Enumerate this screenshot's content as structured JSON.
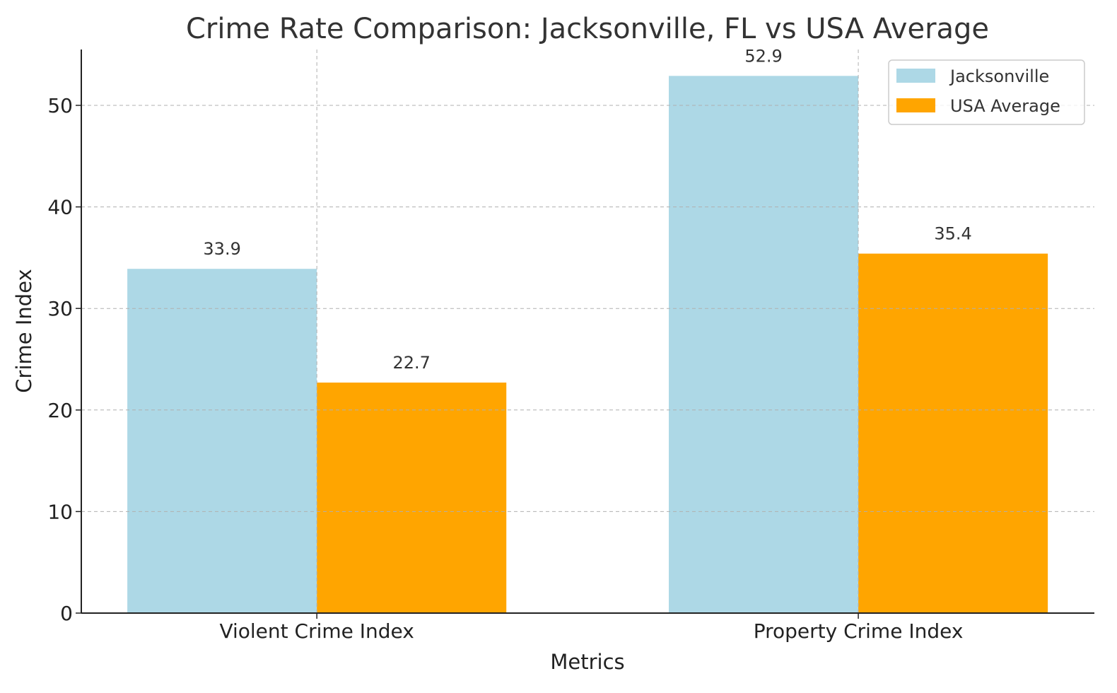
{
  "chart_data": {
    "type": "bar",
    "title": "Crime Rate Comparison: Jacksonville, FL vs USA Average",
    "xlabel": "Metrics",
    "ylabel": "Crime Index",
    "categories": [
      "Violent Crime Index",
      "Property Crime Index"
    ],
    "series": [
      {
        "name": "Jacksonville",
        "values": [
          33.9,
          52.9
        ],
        "color": "#ADD8E6"
      },
      {
        "name": "USA Average",
        "values": [
          22.7,
          35.4
        ],
        "color": "#FFA500"
      }
    ],
    "data_labels": [
      [
        "33.9",
        "52.9"
      ],
      [
        "22.7",
        "35.4"
      ]
    ],
    "ylim": [
      0,
      55.5
    ],
    "yticks": [
      0,
      10,
      20,
      30,
      40,
      50
    ],
    "grid": true,
    "grid_style": "dashed",
    "legend_position": "top-right"
  }
}
